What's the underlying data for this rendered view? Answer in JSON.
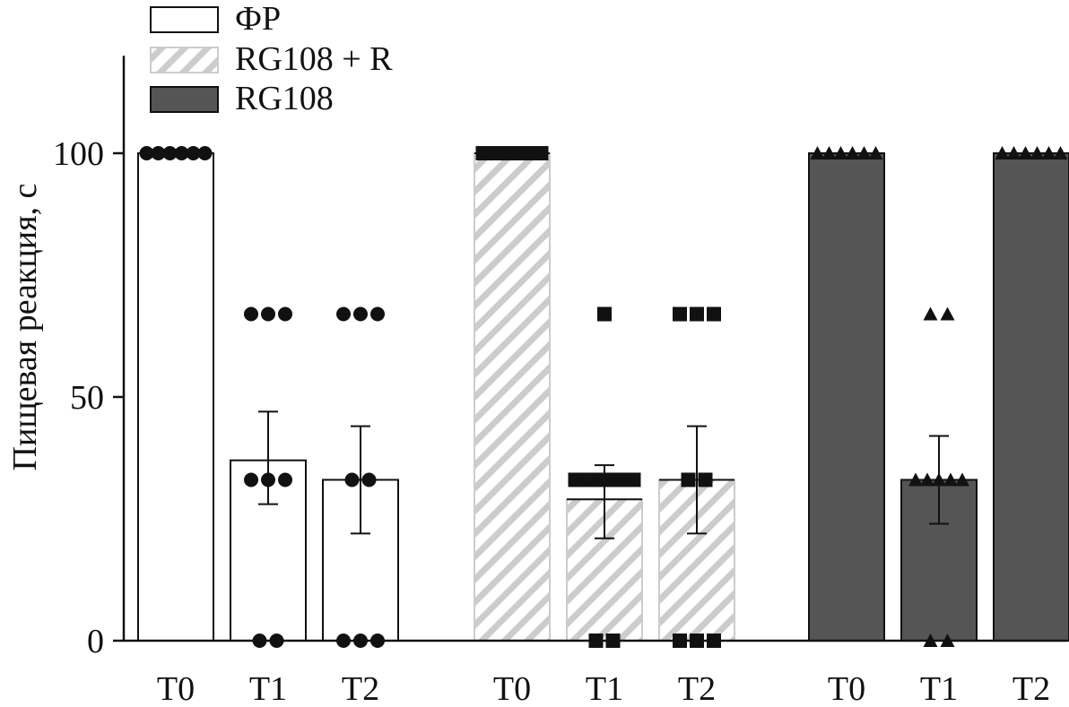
{
  "chart_data": {
    "type": "bar",
    "ylabel": "Пищевая реакция, с",
    "ylim": [
      0,
      120
    ],
    "yticks": [
      0,
      50,
      100
    ],
    "legend": {
      "placement": "top-left",
      "entries": [
        {
          "label": "ФР",
          "series": "fr"
        },
        {
          "label": "RG108 + R",
          "series": "rgr"
        },
        {
          "label": "RG108",
          "series": "rg"
        }
      ]
    },
    "colors": {
      "fr": "#ffffff",
      "rg": "#555555",
      "hatch": "#cccccc",
      "line": "#111111"
    },
    "groups": [
      {
        "id": "fr",
        "name": "ФР",
        "fill": "white",
        "marker": "circle",
        "bars": [
          {
            "label": "T0",
            "mean": 100,
            "err": null,
            "points": [
              100,
              100,
              100,
              100,
              100,
              100
            ]
          },
          {
            "label": "T1",
            "mean": 37,
            "err": [
              28,
              47
            ],
            "points": [
              67,
              67,
              67,
              33,
              33,
              33,
              0,
              0
            ]
          },
          {
            "label": "T2",
            "mean": 33,
            "err": [
              22,
              44
            ],
            "points": [
              67,
              67,
              67,
              33,
              33,
              0,
              0,
              0
            ]
          }
        ]
      },
      {
        "id": "rgr",
        "name": "RG108 + R",
        "fill": "hatch",
        "marker": "square",
        "bars": [
          {
            "label": "T0",
            "mean": 100,
            "err": null,
            "points": [
              100,
              100,
              100,
              100,
              100,
              100
            ]
          },
          {
            "label": "T1",
            "mean": 29,
            "err": [
              21,
              36
            ],
            "points": [
              67,
              33,
              33,
              33,
              33,
              33,
              33,
              0,
              0
            ]
          },
          {
            "label": "T2",
            "mean": 33,
            "err": [
              22,
              44
            ],
            "points": [
              67,
              67,
              67,
              33,
              33,
              0,
              0,
              0
            ]
          }
        ]
      },
      {
        "id": "rg",
        "name": "RG108",
        "fill": "dark",
        "marker": "triangle",
        "bars": [
          {
            "label": "T0",
            "mean": 100,
            "err": null,
            "points": [
              100,
              100,
              100,
              100,
              100,
              100
            ]
          },
          {
            "label": "T1",
            "mean": 33,
            "err": [
              24,
              42
            ],
            "points": [
              67,
              67,
              33,
              33,
              33,
              33,
              33,
              0,
              0
            ]
          },
          {
            "label": "T2",
            "mean": 100,
            "err": null,
            "points": [
              100,
              100,
              100,
              100,
              100,
              100
            ]
          }
        ]
      }
    ]
  }
}
